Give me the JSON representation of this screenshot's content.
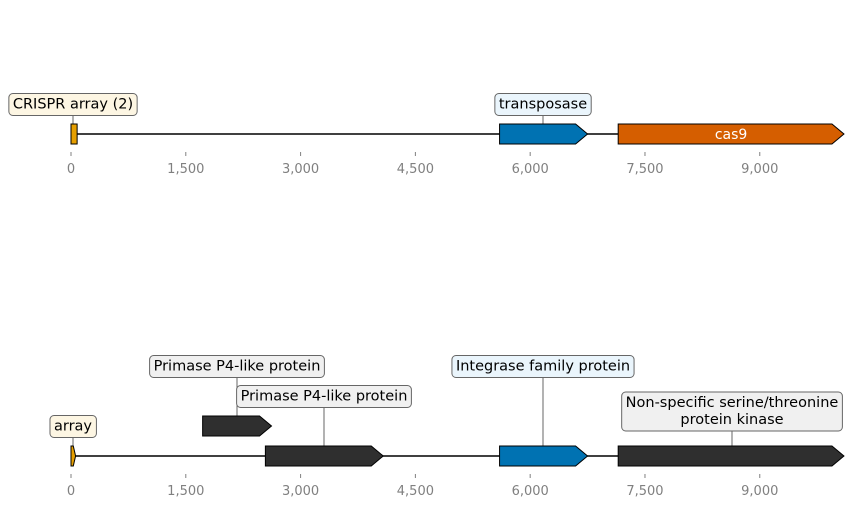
{
  "colors": {
    "array": "#E69F00",
    "transposase": "#0072B2",
    "cas9": "#D55E00",
    "other": "#2F2F2F",
    "label_bg_array": "#FDF6E3",
    "label_bg_blue": "#EAF5FC",
    "label_bg_grey": "#F0F0F0"
  },
  "tracks": [
    {
      "ticks": [
        "0",
        "1,500",
        "3,000",
        "4,500",
        "6,000",
        "7,500",
        "9,000"
      ],
      "tick_values": [
        0,
        1500,
        3000,
        4500,
        6000,
        7500,
        9000
      ],
      "features": [
        {
          "start": 0,
          "end": 80,
          "strand": 0,
          "color_key": "array",
          "label": "CRISPR array (2)",
          "label_bg": "label_bg_array"
        },
        {
          "start": 5600,
          "end": 6750,
          "strand": 1,
          "color_key": "transposase",
          "label": "transposase",
          "label_bg": "label_bg_blue"
        },
        {
          "start": 7150,
          "end": 10100,
          "strand": 1,
          "color_key": "cas9",
          "inline_label": "cas9"
        }
      ]
    },
    {
      "ticks": [
        "0",
        "1,500",
        "3,000",
        "4,500",
        "6,000",
        "7,500",
        "9,000"
      ],
      "tick_values": [
        0,
        1500,
        3000,
        4500,
        6000,
        7500,
        9000
      ],
      "features": [
        {
          "start": 0,
          "end": 60,
          "strand": 1,
          "color_key": "array",
          "label": "array",
          "label_bg": "label_bg_array"
        },
        {
          "start": 1720,
          "end": 2620,
          "strand": 1,
          "color_key": "other",
          "label": "Primase P4-like protein",
          "label_bg": "label_bg_grey"
        },
        {
          "start": 2540,
          "end": 4080,
          "strand": 1,
          "color_key": "other",
          "label": "Primase P4-like protein",
          "label_bg": "label_bg_grey"
        },
        {
          "start": 5600,
          "end": 6750,
          "strand": 1,
          "color_key": "transposase",
          "label": "Integrase family protein",
          "label_bg": "label_bg_blue"
        },
        {
          "start": 7150,
          "end": 10100,
          "strand": 1,
          "color_key": "other",
          "label": "Non-specific serine/threonine\nprotein kinase",
          "label_bg": "label_bg_grey"
        }
      ]
    }
  ]
}
